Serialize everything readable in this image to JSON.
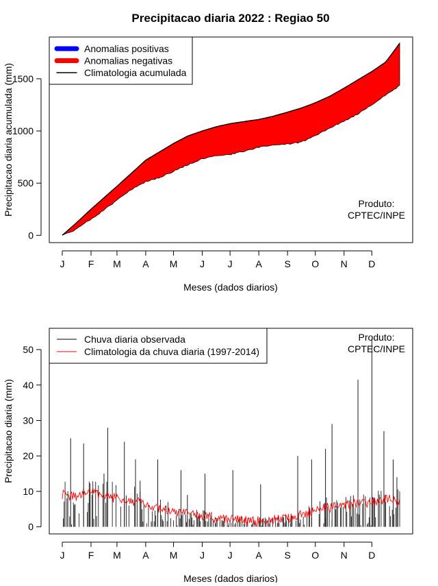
{
  "title": "Precipitacao diaria 2022 : Regiao 50",
  "credit": {
    "line1": "Produto:",
    "line2": "CPTEC/INPE"
  },
  "colors": {
    "positive": "#0000ff",
    "negative": "#ff0000",
    "climatology": "#000000",
    "observed": "#000000",
    "climatology_daily": "#ff0000"
  },
  "chart_data": [
    {
      "type": "area",
      "ylabel": "Precipitacao diaria acumulada (mm)",
      "xlabel": "Meses (dados diarios)",
      "x_ticks": [
        "J",
        "F",
        "M",
        "A",
        "M",
        "J",
        "J",
        "A",
        "S",
        "O",
        "N",
        "D"
      ],
      "y_ticks": [
        0,
        500,
        1000,
        1500
      ],
      "ylim": [
        -70,
        1900
      ],
      "xlim_days": [
        1,
        365
      ],
      "legend": {
        "placement": "top-left",
        "entries": [
          "Anomalias positivas",
          "Anomalias negativas",
          "Climatologia acumulada"
        ]
      },
      "days": [
        1,
        15,
        32,
        46,
        60,
        75,
        91,
        106,
        121,
        136,
        152,
        167,
        182,
        197,
        213,
        228,
        244,
        259,
        274,
        289,
        305,
        320,
        335,
        350,
        365
      ],
      "climatology_cumulative": [
        0,
        110,
        250,
        360,
        470,
        590,
        720,
        800,
        880,
        950,
        1000,
        1040,
        1070,
        1090,
        1110,
        1140,
        1180,
        1220,
        1270,
        1330,
        1410,
        1490,
        1570,
        1660,
        1840
      ],
      "observed_cumulative": [
        0,
        60,
        160,
        250,
        340,
        440,
        520,
        560,
        620,
        680,
        740,
        770,
        780,
        810,
        850,
        870,
        880,
        900,
        960,
        1030,
        1100,
        1170,
        1260,
        1350,
        1440
      ]
    },
    {
      "type": "bar",
      "ylabel": "Precipitacao diaria (mm)",
      "xlabel": "Meses (dados diarios)",
      "x_ticks": [
        "J",
        "F",
        "M",
        "A",
        "M",
        "J",
        "J",
        "A",
        "S",
        "O",
        "N",
        "D"
      ],
      "y_ticks": [
        0,
        10,
        20,
        30,
        40,
        50
      ],
      "ylim": [
        -2,
        56
      ],
      "xlim_days": [
        1,
        365
      ],
      "legend": {
        "placement": "top-left",
        "entries": [
          "Chuva diaria observada",
          "Climatologia da chuva diaria (1997-2014)"
        ]
      },
      "observed_peaks": [
        {
          "day": 10,
          "value": 25
        },
        {
          "day": 24,
          "value": 23.5
        },
        {
          "day": 31,
          "value": 10
        },
        {
          "day": 46,
          "value": 15
        },
        {
          "day": 50,
          "value": 28
        },
        {
          "day": 68,
          "value": 24
        },
        {
          "day": 80,
          "value": 19
        },
        {
          "day": 85,
          "value": 13
        },
        {
          "day": 104,
          "value": 19
        },
        {
          "day": 129,
          "value": 16
        },
        {
          "day": 136,
          "value": 9
        },
        {
          "day": 155,
          "value": 15
        },
        {
          "day": 185,
          "value": 16
        },
        {
          "day": 215,
          "value": 12
        },
        {
          "day": 255,
          "value": 20
        },
        {
          "day": 270,
          "value": 19
        },
        {
          "day": 285,
          "value": 22
        },
        {
          "day": 292,
          "value": 29
        },
        {
          "day": 320,
          "value": 41.5
        },
        {
          "day": 335,
          "value": 53
        },
        {
          "day": 348,
          "value": 27
        },
        {
          "day": 358,
          "value": 19
        },
        {
          "day": 362,
          "value": 14
        }
      ],
      "climatology_daily": {
        "days": [
          1,
          15,
          32,
          46,
          60,
          75,
          91,
          106,
          121,
          136,
          152,
          167,
          182,
          197,
          213,
          228,
          244,
          259,
          274,
          289,
          305,
          320,
          335,
          350,
          365
        ],
        "values": [
          9,
          8.5,
          10,
          9,
          8,
          7.5,
          6.5,
          5,
          4,
          3.5,
          3,
          2.5,
          2,
          1.8,
          1.5,
          2,
          2.5,
          3.5,
          4.5,
          5.5,
          6,
          6.5,
          7,
          8,
          7
        ]
      }
    }
  ]
}
